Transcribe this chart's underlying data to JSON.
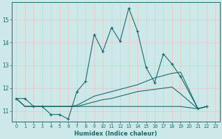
{
  "xlabel": "Humidex (Indice chaleur)",
  "bg_color": "#cce8e8",
  "grid_color": "#e8c8c8",
  "line_color": "#1a6b6b",
  "x_range": [
    -0.5,
    23.5
  ],
  "y_range": [
    10.55,
    15.75
  ],
  "yticks": [
    11,
    12,
    13,
    14,
    15
  ],
  "xticks": [
    0,
    1,
    2,
    3,
    4,
    5,
    6,
    7,
    8,
    9,
    10,
    11,
    12,
    13,
    14,
    15,
    16,
    17,
    18,
    19,
    20,
    21,
    22,
    23
  ],
  "lines": [
    {
      "x": [
        0,
        1,
        2,
        3,
        4,
        5,
        6,
        7,
        8,
        9,
        10,
        11,
        12,
        13,
        14,
        15,
        16,
        17,
        18,
        19,
        21,
        22
      ],
      "y": [
        11.55,
        11.55,
        11.2,
        11.2,
        10.85,
        10.85,
        10.65,
        11.85,
        12.3,
        14.35,
        13.6,
        14.65,
        14.05,
        15.5,
        14.5,
        12.9,
        12.25,
        13.5,
        13.05,
        12.5,
        11.1,
        11.2
      ],
      "marker": true
    },
    {
      "x": [
        0,
        1,
        2,
        3,
        4,
        5,
        6,
        7,
        8,
        9,
        10,
        11,
        12,
        13,
        14,
        15,
        16,
        17,
        18,
        19,
        21,
        22
      ],
      "y": [
        11.55,
        11.2,
        11.2,
        11.2,
        11.2,
        11.2,
        11.2,
        11.25,
        11.45,
        11.65,
        11.75,
        11.85,
        11.95,
        12.05,
        12.15,
        12.3,
        12.45,
        12.55,
        12.65,
        12.7,
        11.1,
        11.2
      ],
      "marker": false
    },
    {
      "x": [
        0,
        1,
        2,
        3,
        4,
        5,
        6,
        7,
        8,
        9,
        10,
        11,
        12,
        13,
        14,
        15,
        16,
        17,
        18,
        19,
        21,
        22
      ],
      "y": [
        11.55,
        11.2,
        11.2,
        11.2,
        11.2,
        11.2,
        11.2,
        11.2,
        11.3,
        11.4,
        11.5,
        11.55,
        11.65,
        11.75,
        11.85,
        11.9,
        11.95,
        12.0,
        12.05,
        11.75,
        11.1,
        11.2
      ],
      "marker": false
    },
    {
      "x": [
        0,
        1,
        2,
        3,
        4,
        5,
        6,
        7,
        8,
        9,
        10,
        11,
        12,
        13,
        14,
        15,
        16,
        17,
        18,
        19,
        21,
        22
      ],
      "y": [
        11.55,
        11.2,
        11.2,
        11.2,
        11.2,
        11.2,
        11.2,
        11.2,
        11.2,
        11.2,
        11.2,
        11.2,
        11.2,
        11.2,
        11.2,
        11.2,
        11.2,
        11.2,
        11.2,
        11.2,
        11.1,
        11.2
      ],
      "marker": false
    }
  ]
}
